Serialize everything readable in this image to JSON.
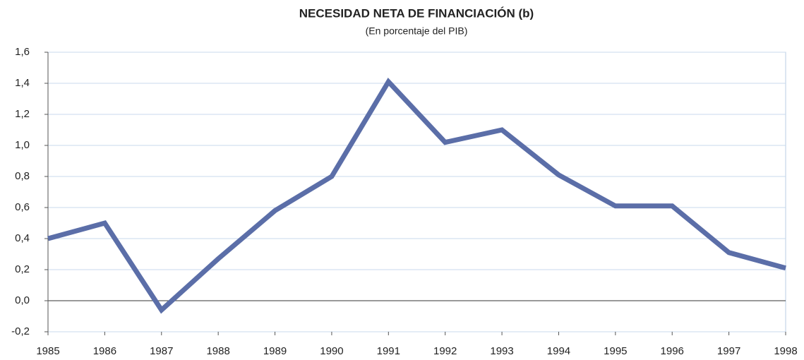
{
  "chart_data": {
    "type": "line",
    "title": "NECESIDAD NETA DE FINANCIACIÓN (b)",
    "subtitle": "(En porcentaje del PIB)",
    "categories": [
      "1985",
      "1986",
      "1987",
      "1988",
      "1989",
      "1990",
      "1991",
      "1992",
      "1993",
      "1994",
      "1995",
      "1996",
      "1997",
      "1998"
    ],
    "values": [
      0.4,
      0.5,
      -0.06,
      0.27,
      0.58,
      0.8,
      1.41,
      1.02,
      1.1,
      0.81,
      0.61,
      0.61,
      0.31,
      0.21
    ],
    "color": "#5b6ea8",
    "ylim": [
      -0.2,
      1.6
    ],
    "yticks": [
      {
        "value": -0.2,
        "label": "-0,2"
      },
      {
        "value": 0,
        "label": "0,0"
      },
      {
        "value": 0.2,
        "label": "0,2"
      },
      {
        "value": 0.4,
        "label": "0,4"
      },
      {
        "value": 0.6,
        "label": "0,6"
      },
      {
        "value": 0.8,
        "label": "0,8"
      },
      {
        "value": 1.0,
        "label": "1,0"
      },
      {
        "value": 1.2,
        "label": "1,2"
      },
      {
        "value": 1.4,
        "label": "1,4"
      },
      {
        "value": 1.6,
        "label": "1,6"
      }
    ],
    "grid": true
  }
}
